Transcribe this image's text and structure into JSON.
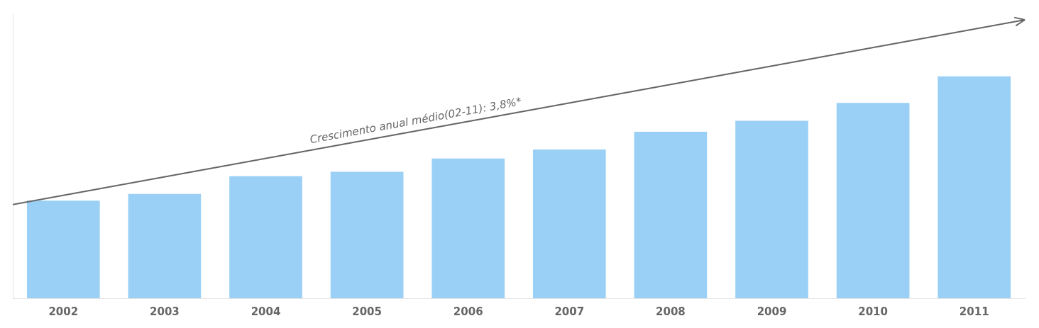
{
  "chart_data": {
    "type": "bar",
    "categories": [
      "2002",
      "2003",
      "2004",
      "2005",
      "2006",
      "2007",
      "2008",
      "2009",
      "2010",
      "2011"
    ],
    "values": [
      0.44,
      0.47,
      0.55,
      0.57,
      0.63,
      0.67,
      0.75,
      0.8,
      0.88,
      1.0
    ],
    "ylim": [
      0,
      1.28
    ],
    "tick_labels": "x",
    "grid": false,
    "annotations": [
      "Crescimento anual médio(02-11): 3,8%*"
    ]
  }
}
